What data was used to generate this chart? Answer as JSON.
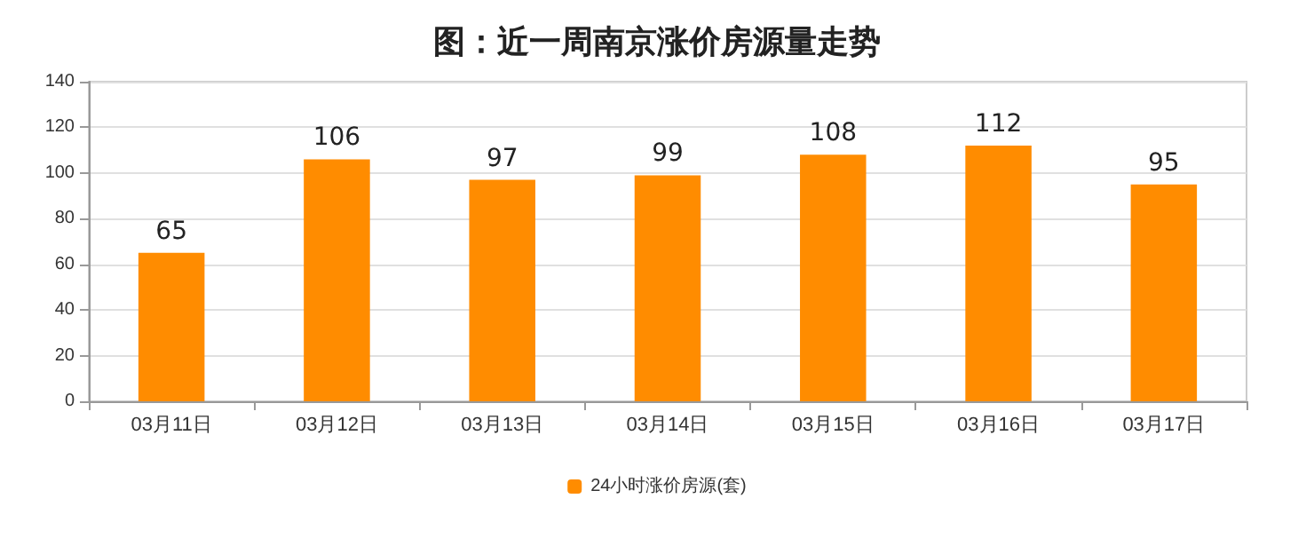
{
  "chart_data": {
    "type": "bar",
    "title": "图：近一周南京涨价房源量走势",
    "categories": [
      "03月11日",
      "03月12日",
      "03月13日",
      "03月14日",
      "03月15日",
      "03月16日",
      "03月17日"
    ],
    "series": [
      {
        "name": "24小时涨价房源(套)",
        "color": "#ff8c00",
        "values": [
          65,
          106,
          97,
          99,
          108,
          112,
          95
        ]
      }
    ],
    "ylim": [
      0,
      140
    ],
    "yticks": [
      0,
      20,
      40,
      60,
      80,
      100,
      120,
      140
    ],
    "grid": "y",
    "legend": "bottom",
    "data_labels": true
  }
}
